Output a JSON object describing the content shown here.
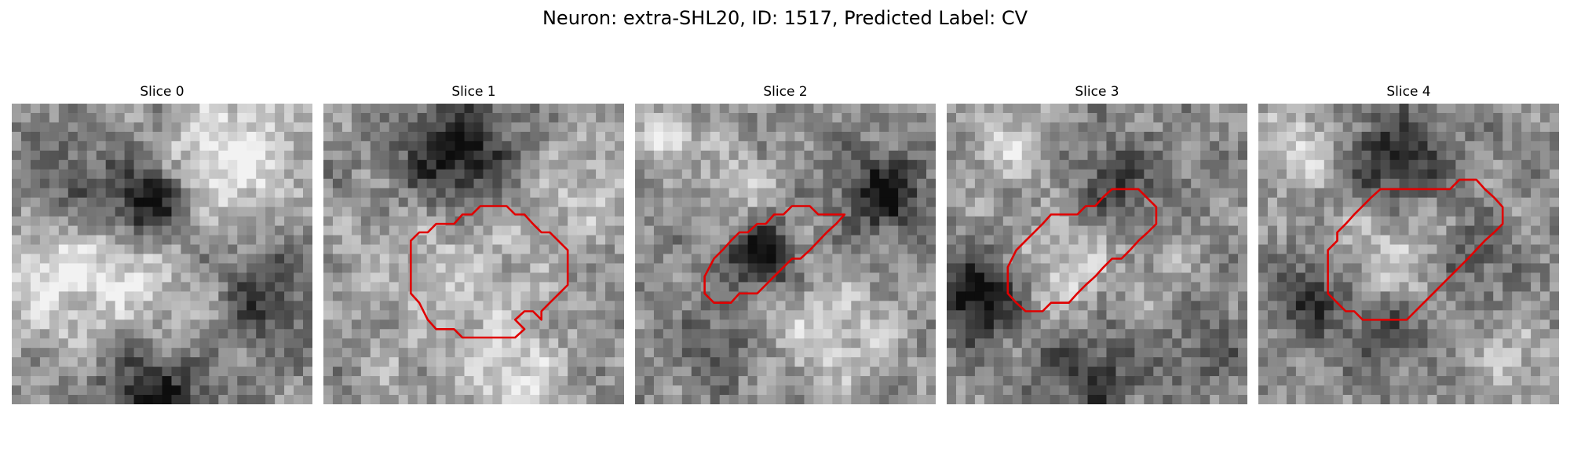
{
  "figure": {
    "title": "Neuron: extra-SHL20, ID: 1517, Predicted Label: CV"
  },
  "panels": [
    {
      "title": "Slice 0",
      "has_outline": false
    },
    {
      "title": "Slice 1",
      "has_outline": true
    },
    {
      "title": "Slice 2",
      "has_outline": true
    },
    {
      "title": "Slice 3",
      "has_outline": true
    },
    {
      "title": "Slice 4",
      "has_outline": true
    }
  ],
  "colors": {
    "outline": "#e00000",
    "background": "#ffffff"
  }
}
